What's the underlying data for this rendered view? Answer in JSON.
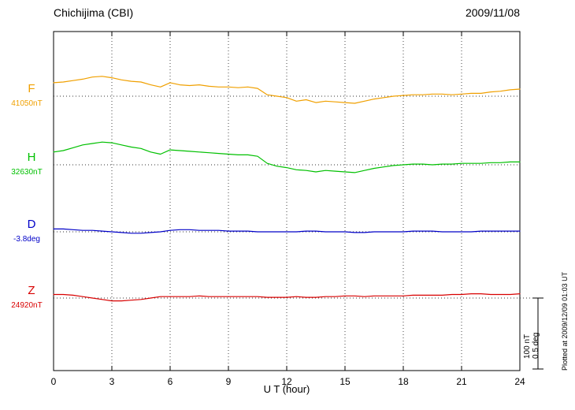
{
  "header": {
    "title": "Chichijima (CBI)",
    "date": "2009/11/08"
  },
  "footer": {
    "xlabel": "U T (hour)"
  },
  "scale_bar": {
    "nt": "100 nT",
    "deg": "0.5 deg"
  },
  "plotted_at": "Plotted at 2009/12/09 01:03 UT",
  "chart_data": {
    "type": "line",
    "title": "Chichijima (CBI)",
    "date": "2009/11/08",
    "xlabel": "U T (hour)",
    "x_range_hours": [
      0,
      24
    ],
    "x_ticks": [
      0,
      3,
      6,
      9,
      12,
      15,
      18,
      21,
      24
    ],
    "x_step_hours": 0.5,
    "grid": "dotted vertical lines at x ticks, dotted horizontal baseline per series",
    "legend_position": "left margin, one colored label per trace",
    "scale": {
      "nT_per_division": 100,
      "deg_per_division": 0.5
    },
    "series": [
      {
        "name": "F",
        "baseline_label": "41050nT",
        "baseline_value": 41050,
        "unit": "nT",
        "color": "#f0a000",
        "values_offset": [
          19,
          20,
          22,
          24,
          27,
          28,
          26,
          23,
          21,
          20,
          16,
          13,
          19,
          16,
          15,
          16,
          14,
          13,
          13,
          12,
          13,
          11,
          2,
          0,
          -2,
          -7,
          -5,
          -9,
          -7,
          -8,
          -9,
          -10,
          -7,
          -4,
          -2,
          0,
          1,
          2,
          2,
          3,
          3,
          2,
          3,
          4,
          4,
          6,
          7,
          9,
          10
        ]
      },
      {
        "name": "H",
        "baseline_label": "32630nT",
        "baseline_value": 32630,
        "unit": "nT",
        "color": "#00c000",
        "values_offset": [
          18,
          20,
          24,
          28,
          30,
          32,
          31,
          28,
          25,
          23,
          18,
          15,
          21,
          20,
          19,
          18,
          17,
          16,
          15,
          14,
          14,
          12,
          2,
          -2,
          -4,
          -7,
          -8,
          -10,
          -8,
          -9,
          -10,
          -11,
          -8,
          -5,
          -3,
          -1,
          0,
          1,
          1,
          0,
          1,
          1,
          2,
          2,
          2,
          3,
          3,
          4,
          4
        ]
      },
      {
        "name": "D",
        "baseline_label": "-3.8deg",
        "baseline_value": -3.8,
        "unit": "deg",
        "color": "#0000c8",
        "values_offset": [
          0.02,
          0.02,
          0.015,
          0.01,
          0.01,
          0.005,
          0,
          -0.005,
          -0.01,
          -0.01,
          -0.005,
          0,
          0.01,
          0.015,
          0.015,
          0.01,
          0.01,
          0.01,
          0.005,
          0.005,
          0.005,
          0,
          0,
          0,
          0,
          0,
          0.005,
          0.005,
          0,
          0,
          0,
          -0.005,
          -0.005,
          0,
          0,
          0,
          0,
          0.005,
          0.005,
          0.005,
          0,
          0,
          0,
          0,
          0.005,
          0.005,
          0.005,
          0.005,
          0.005
        ]
      },
      {
        "name": "Z",
        "baseline_label": "24920nT",
        "baseline_value": 24920,
        "unit": "nT",
        "color": "#d80000",
        "values_offset": [
          5,
          5,
          4,
          2,
          0,
          -2,
          -4,
          -4,
          -3,
          -2,
          0,
          2,
          2,
          2,
          2,
          3,
          2,
          2,
          2,
          2,
          2,
          2,
          1,
          1,
          1,
          2,
          1,
          1,
          2,
          2,
          3,
          3,
          2,
          3,
          3,
          3,
          3,
          4,
          4,
          4,
          4,
          5,
          5,
          6,
          6,
          5,
          5,
          5,
          6
        ]
      }
    ]
  }
}
